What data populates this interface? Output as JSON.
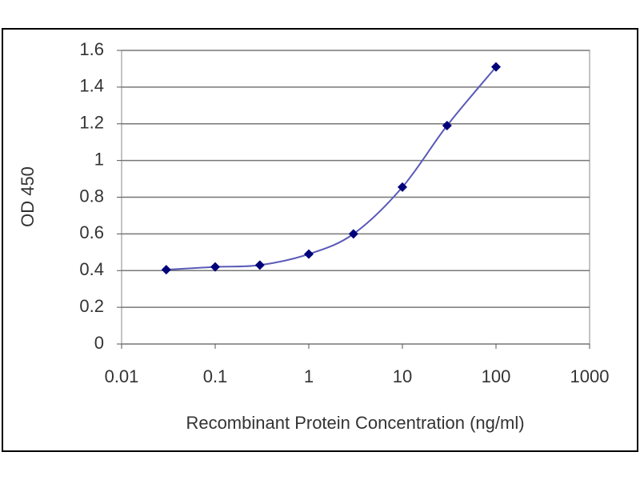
{
  "chart_data": {
    "type": "line",
    "x_label": "Recombinant Protein Concentration (ng/ml)",
    "y_label": "OD 450",
    "x": [
      0.03,
      0.1,
      0.3,
      1,
      3,
      10,
      30,
      100
    ],
    "series": [
      {
        "color": "#00007a",
        "line_color": "#5a5ab8",
        "values": [
          0.405,
          0.42,
          0.43,
          0.49,
          0.6,
          0.855,
          1.19,
          1.51
        ]
      }
    ],
    "xscale": "log",
    "xlim": [
      0.01,
      1000
    ],
    "xticks": [
      0.01,
      0.1,
      1,
      10,
      100,
      1000
    ],
    "ylim": [
      0,
      1.6
    ],
    "yticks": [
      0,
      0.2,
      0.4,
      0.6,
      0.8,
      1,
      1.2,
      1.4,
      1.6
    ],
    "grid": true
  }
}
